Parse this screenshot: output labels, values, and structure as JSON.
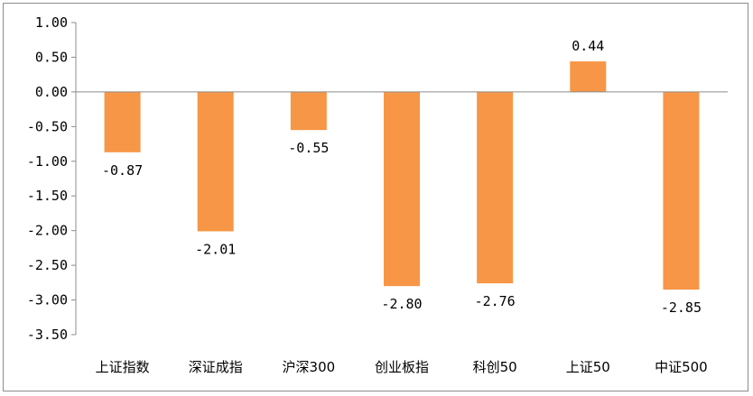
{
  "chart_data": {
    "type": "bar",
    "categories": [
      "上证指数",
      "深证成指",
      "沪深300",
      "创业板指",
      "科创50",
      "上证50",
      "中证500"
    ],
    "values": [
      -0.87,
      -2.01,
      -0.55,
      -2.8,
      -2.76,
      0.44,
      -2.85
    ],
    "data_labels": [
      "-0.87",
      "-2.01",
      "-0.55",
      "-2.80",
      "-2.76",
      "0.44",
      "-2.85"
    ],
    "ylim": [
      -3.5,
      1.0
    ],
    "yticks": [
      "1.00",
      "0.50",
      "0.00",
      "-0.50",
      "-1.00",
      "-1.50",
      "-2.00",
      "-2.50",
      "-3.00",
      "-3.50"
    ],
    "ytick_values": [
      1.0,
      0.5,
      0.0,
      -0.5,
      -1.0,
      -1.5,
      -2.0,
      -2.5,
      -3.0,
      -3.5
    ],
    "grid": false,
    "legend": "none",
    "title": "",
    "xlabel": "",
    "ylabel": "",
    "bar_color": "#F79646"
  }
}
